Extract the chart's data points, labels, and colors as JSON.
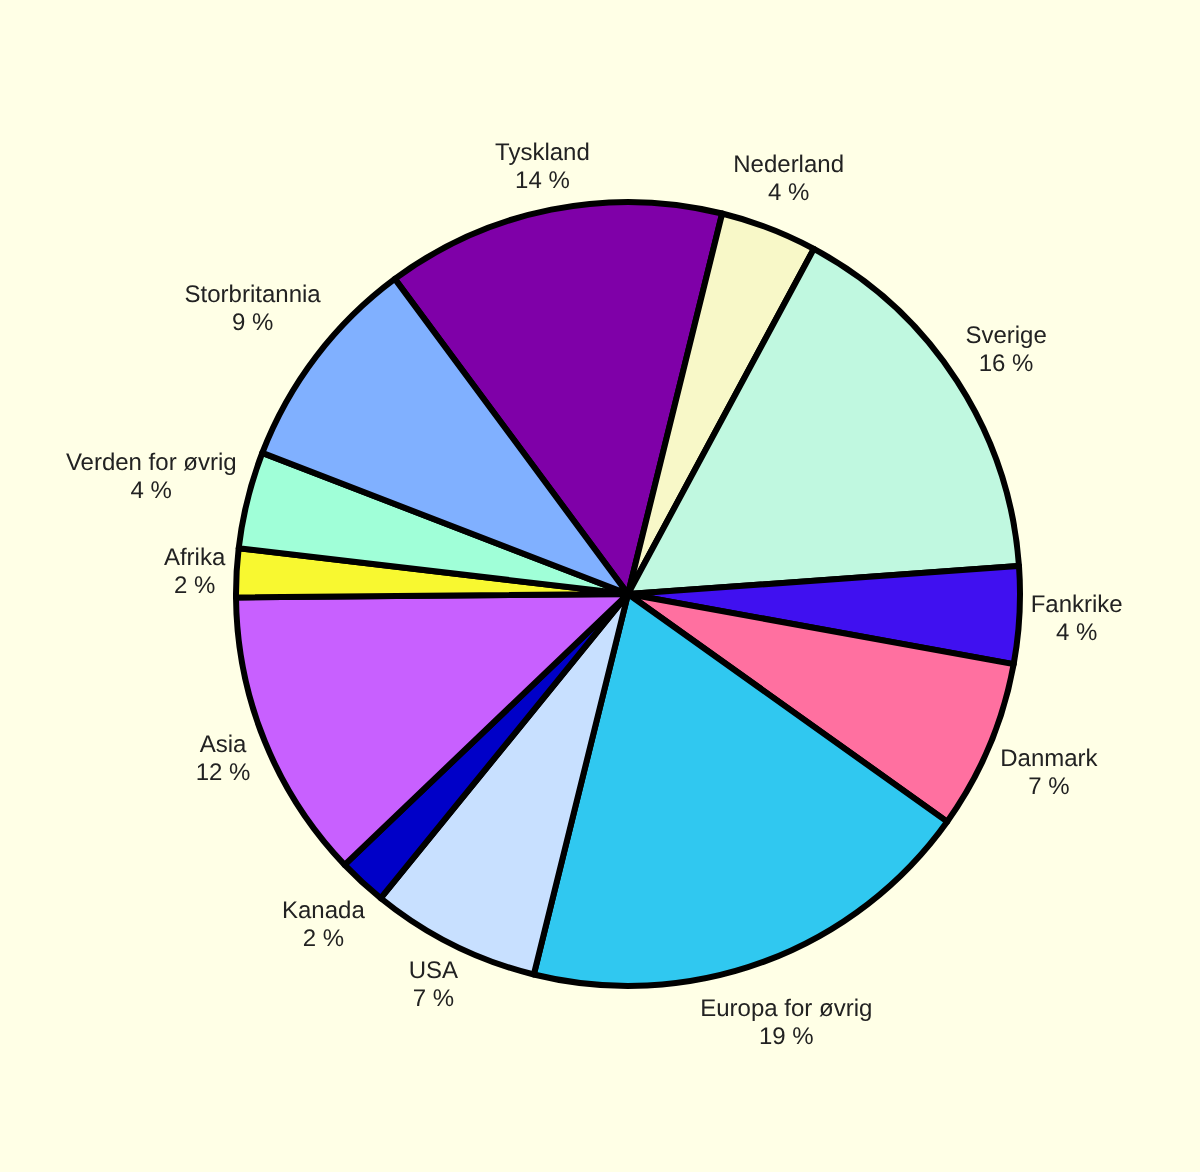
{
  "chart_data": {
    "type": "pie",
    "categories": [
      "Tyskland",
      "Nederland",
      "Sverige",
      "Fankrike",
      "Danmark",
      "Europa for øvrig",
      "USA",
      "Kanada",
      "Asia",
      "Afrika",
      "Verden for øvrig",
      "Storbritannia"
    ],
    "values": [
      14,
      4,
      16,
      4,
      7,
      19,
      7,
      2,
      12,
      2,
      4,
      9
    ],
    "value_labels": [
      "14 %",
      "4 %",
      "16 %",
      "4 %",
      "7 %",
      "19 %",
      "7 %",
      "2 %",
      "12 %",
      "2 %",
      "4 %",
      "9 %"
    ],
    "colors": [
      "#7f00a8",
      "#f8f8c8",
      "#c0f8e0",
      "#4010f0",
      "#ff70a0",
      "#30c8f0",
      "#c8e0ff",
      "#0000c8",
      "#c860ff",
      "#f8f830",
      "#a0ffd8",
      "#80b0ff"
    ]
  }
}
